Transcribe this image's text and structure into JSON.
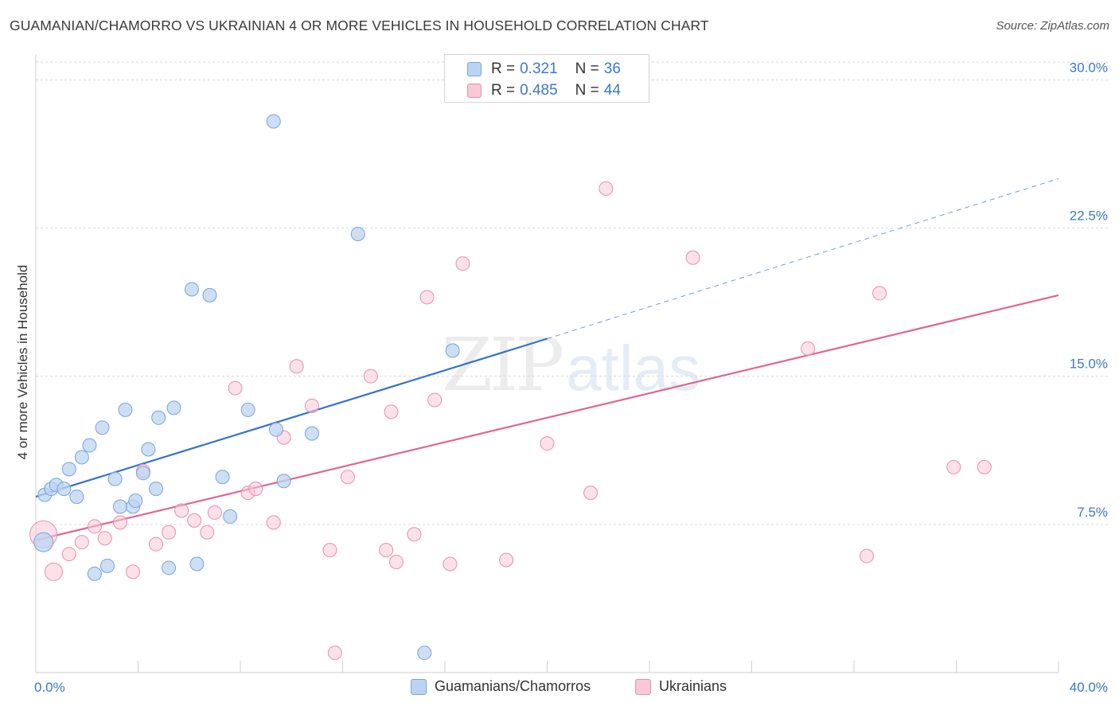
{
  "title": "GUAMANIAN/CHAMORRO VS UKRAINIAN 4 OR MORE VEHICLES IN HOUSEHOLD CORRELATION CHART",
  "source": "Source: ZipAtlas.com",
  "watermark": {
    "zip": "ZIP",
    "atlas": "atlas"
  },
  "legend": {
    "rows": [
      {
        "r_label": "R =",
        "r_value": "0.321",
        "n_label": "N =",
        "n_value": "36"
      },
      {
        "r_label": "R =",
        "r_value": "0.485",
        "n_label": "N =",
        "n_value": "44"
      }
    ]
  },
  "chart_data": {
    "type": "scatter",
    "ylabel": "4 or more Vehicles in Household",
    "xlim": [
      0,
      40
    ],
    "ylim": [
      0,
      30.9
    ],
    "x_ticks": [
      0,
      4,
      8,
      12,
      16,
      20,
      24,
      28,
      32,
      36,
      40
    ],
    "x_tick_labels": [
      "0.0%",
      "",
      "",
      "",
      "",
      "",
      "",
      "",
      "",
      "",
      "40.0%"
    ],
    "y_ticks": [
      7.5,
      15,
      22.5,
      30
    ],
    "y_tick_labels": [
      "7.5%",
      "15.0%",
      "22.5%",
      "30.0%"
    ],
    "grid": "horizontal dashed",
    "legend_position": "top-center",
    "colors": {
      "blue_fill": "#bcd4f2",
      "blue_stroke": "#7aa3d8",
      "blue_line": "#3473cd",
      "pink_fill": "#f9c8d7",
      "pink_stroke": "#e68fad",
      "pink_line": "#e0668f"
    },
    "series": [
      {
        "name": "Guamanians/Chamorros",
        "color": "blue",
        "points": [
          [
            0.3,
            6.6
          ],
          [
            0.35,
            9.0
          ],
          [
            0.6,
            9.3
          ],
          [
            0.8,
            9.5
          ],
          [
            1.1,
            9.3
          ],
          [
            1.3,
            10.3
          ],
          [
            1.6,
            8.9
          ],
          [
            1.8,
            10.9
          ],
          [
            2.1,
            11.5
          ],
          [
            2.3,
            5.0
          ],
          [
            2.6,
            12.4
          ],
          [
            2.8,
            5.4
          ],
          [
            3.1,
            9.8
          ],
          [
            3.3,
            8.4
          ],
          [
            3.5,
            13.3
          ],
          [
            3.8,
            8.4
          ],
          [
            3.9,
            8.7
          ],
          [
            4.2,
            10.1
          ],
          [
            4.4,
            11.3
          ],
          [
            4.7,
            9.3
          ],
          [
            4.8,
            12.9
          ],
          [
            5.2,
            5.3
          ],
          [
            5.4,
            13.4
          ],
          [
            6.1,
            19.4
          ],
          [
            6.3,
            5.5
          ],
          [
            6.8,
            19.1
          ],
          [
            7.3,
            9.9
          ],
          [
            7.6,
            7.9
          ],
          [
            8.3,
            13.3
          ],
          [
            9.3,
            27.9
          ],
          [
            9.4,
            12.3
          ],
          [
            9.7,
            9.7
          ],
          [
            10.8,
            12.1
          ],
          [
            12.6,
            22.2
          ],
          [
            15.2,
            1.0
          ],
          [
            16.3,
            16.3
          ]
        ],
        "trend": {
          "x0": 0,
          "y0": 8.9,
          "x1": 20,
          "y1": 16.9,
          "dashed_to_x": 40,
          "dashed_to_y": 25.0
        }
      },
      {
        "name": "Ukrainians",
        "color": "pink",
        "points": [
          [
            0.3,
            7.0
          ],
          [
            0.7,
            5.1
          ],
          [
            1.3,
            6.0
          ],
          [
            1.8,
            6.6
          ],
          [
            2.3,
            7.4
          ],
          [
            2.7,
            6.8
          ],
          [
            3.3,
            7.6
          ],
          [
            3.8,
            5.1
          ],
          [
            4.2,
            10.2
          ],
          [
            4.7,
            6.5
          ],
          [
            5.2,
            7.1
          ],
          [
            5.7,
            8.2
          ],
          [
            6.2,
            7.7
          ],
          [
            6.7,
            7.1
          ],
          [
            7.0,
            8.1
          ],
          [
            7.8,
            14.4
          ],
          [
            8.3,
            9.1
          ],
          [
            8.6,
            9.3
          ],
          [
            9.3,
            7.6
          ],
          [
            9.7,
            11.9
          ],
          [
            10.2,
            15.5
          ],
          [
            10.8,
            13.5
          ],
          [
            11.5,
            6.2
          ],
          [
            11.7,
            1.0
          ],
          [
            12.2,
            9.9
          ],
          [
            13.1,
            15.0
          ],
          [
            13.7,
            6.2
          ],
          [
            13.9,
            13.2
          ],
          [
            14.1,
            5.6
          ],
          [
            14.8,
            7.0
          ],
          [
            15.6,
            13.8
          ],
          [
            15.3,
            19.0
          ],
          [
            16.2,
            5.5
          ],
          [
            16.7,
            20.7
          ],
          [
            18.4,
            5.7
          ],
          [
            20.0,
            11.6
          ],
          [
            21.7,
            9.1
          ],
          [
            22.3,
            24.5
          ],
          [
            25.7,
            21.0
          ],
          [
            30.2,
            16.4
          ],
          [
            32.5,
            5.9
          ],
          [
            33.0,
            19.2
          ],
          [
            35.9,
            10.4
          ],
          [
            37.1,
            10.4
          ]
        ],
        "trend": {
          "x0": 0,
          "y0": 6.7,
          "x1": 40,
          "y1": 19.1
        }
      }
    ]
  },
  "bottom_legend": [
    {
      "label": "Guamanians/Chamorros"
    },
    {
      "label": "Ukrainians"
    }
  ]
}
